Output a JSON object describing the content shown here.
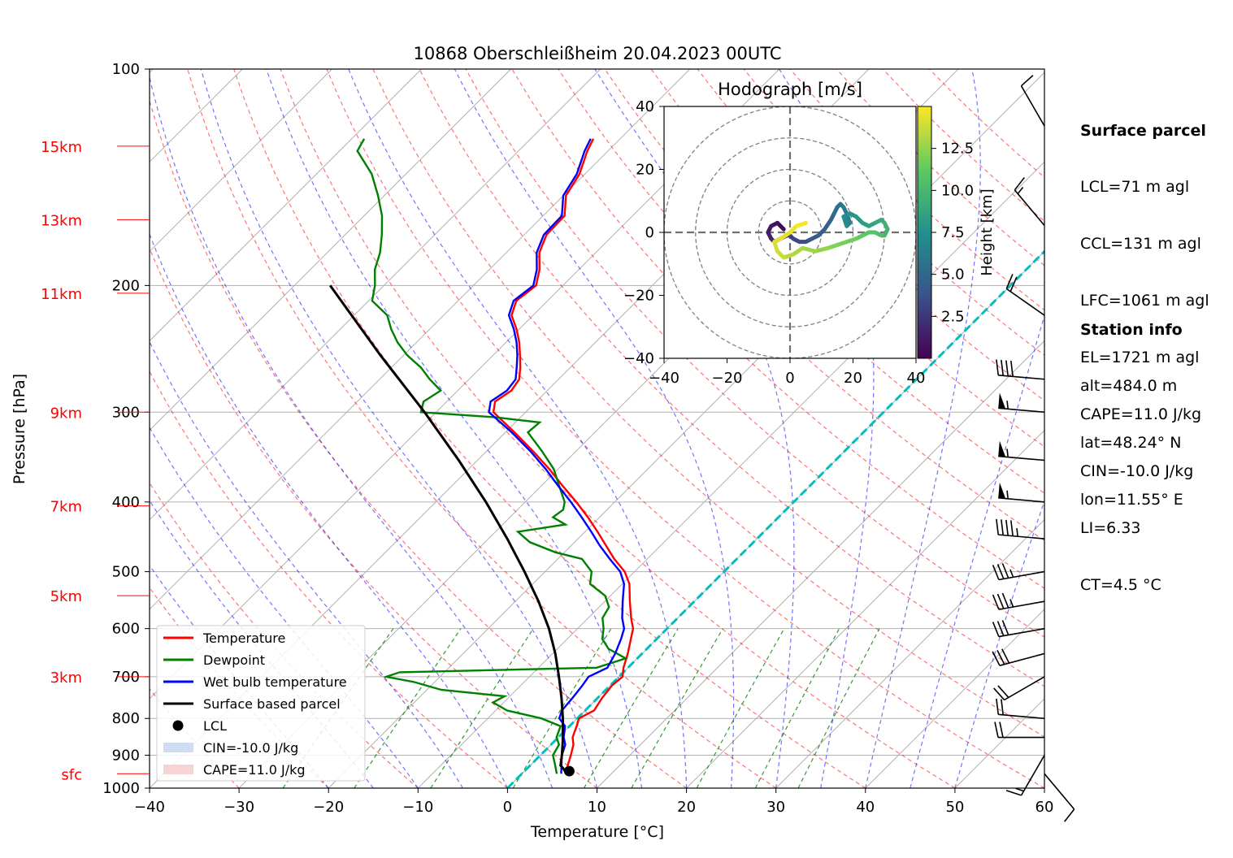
{
  "chart_data": {
    "type": "line",
    "title": "10868 Oberschleißheim 20.04.2023 00UTC",
    "xlabel": "Temperature [°C]",
    "ylabel": "Pressure [hPa]",
    "xlim": [
      -40,
      60
    ],
    "ylim": [
      1000,
      100
    ],
    "y_scale": "log",
    "skew_deg": 45,
    "x_ticks": [
      "−40",
      "−30",
      "−20",
      "−10",
      "0",
      "10",
      "20",
      "30",
      "40",
      "50",
      "60"
    ],
    "x_tick_values": [
      -40,
      -30,
      -20,
      -10,
      0,
      10,
      20,
      30,
      40,
      50,
      60
    ],
    "y_ticks": [
      "100",
      "200",
      "300",
      "400",
      "500",
      "600",
      "700",
      "800",
      "900",
      "1000"
    ],
    "y_tick_values": [
      100,
      200,
      300,
      400,
      500,
      600,
      700,
      800,
      900,
      1000
    ],
    "height_labels": [
      {
        "label": "15km",
        "p": 128
      },
      {
        "label": "13km",
        "p": 162
      },
      {
        "label": "11km",
        "p": 205
      },
      {
        "label": "9km",
        "p": 300
      },
      {
        "label": "7km",
        "p": 405
      },
      {
        "label": "5km",
        "p": 540
      },
      {
        "label": "3km",
        "p": 700
      },
      {
        "label": "sfc",
        "p": 955
      }
    ],
    "series": [
      {
        "name": "Temperature",
        "color": "#ff0000",
        "p": [
          955,
          930,
          900,
          870,
          850,
          820,
          800,
          780,
          750,
          720,
          700,
          680,
          650,
          620,
          600,
          580,
          550,
          520,
          500,
          480,
          460,
          440,
          420,
          400,
          380,
          360,
          340,
          320,
          300,
          290,
          280,
          270,
          260,
          250,
          240,
          230,
          220,
          210,
          200,
          190,
          180,
          170,
          160,
          150,
          140,
          130,
          125
        ],
        "t": [
          5.0,
          4.2,
          3.4,
          2.5,
          1.6,
          0.8,
          0.2,
          1.0,
          0.5,
          0.2,
          0.4,
          -0.5,
          -1.6,
          -2.9,
          -3.8,
          -5.2,
          -7.2,
          -9.2,
          -11.1,
          -13.7,
          -16.1,
          -18.6,
          -21.3,
          -24.3,
          -27.6,
          -31.0,
          -34.8,
          -39.0,
          -43.6,
          -44.6,
          -44.0,
          -44.4,
          -45.6,
          -47.0,
          -48.5,
          -50.3,
          -52.4,
          -53.5,
          -53.0,
          -54.4,
          -56.3,
          -57.5,
          -57.6,
          -59.7,
          -60.6,
          -62.3,
          -63.0
        ]
      },
      {
        "name": "Dewpoint",
        "color": "#008000",
        "p": [
          955,
          930,
          900,
          870,
          850,
          820,
          800,
          780,
          760,
          745,
          730,
          712,
          700,
          690,
          680,
          660,
          640,
          620,
          600,
          580,
          560,
          540,
          520,
          500,
          480,
          470,
          455,
          440,
          430,
          420,
          410,
          400,
          380,
          360,
          340,
          320,
          310,
          305,
          300,
          290,
          280,
          270,
          260,
          250,
          240,
          230,
          220,
          210,
          200,
          190,
          180,
          170,
          160,
          150,
          140,
          130,
          125
        ],
        "t": [
          3.9,
          2.8,
          1.4,
          0.9,
          -0.2,
          -1.0,
          -4.0,
          -8.7,
          -11.2,
          -10.6,
          -18.4,
          -22.3,
          -26.0,
          -25.0,
          -3.5,
          -1.3,
          -4.3,
          -6.1,
          -7.1,
          -8.4,
          -8.9,
          -10.6,
          -13.6,
          -14.8,
          -17.3,
          -21.0,
          -25.0,
          -27.5,
          -23.0,
          -25.2,
          -24.9,
          -25.6,
          -28.0,
          -30.5,
          -33.8,
          -37.5,
          -37.3,
          -42.8,
          -51.7,
          -52.6,
          -51.9,
          -54.4,
          -56.7,
          -59.6,
          -62.1,
          -64.3,
          -66.3,
          -69.6,
          -71.0,
          -72.8,
          -74.1,
          -75.9,
          -78.0,
          -80.7,
          -83.8,
          -88.0,
          -88.6
        ]
      },
      {
        "name": "Wet bulb temperature",
        "color": "#0000ff",
        "p": [
          955,
          930,
          900,
          870,
          850,
          820,
          800,
          780,
          750,
          720,
          700,
          680,
          650,
          620,
          600,
          580,
          550,
          520,
          500,
          480,
          460,
          440,
          420,
          400,
          380,
          360,
          340,
          320,
          300,
          290,
          280,
          270,
          260,
          250,
          240,
          230,
          220,
          210,
          200,
          190,
          180,
          170,
          160,
          150,
          140,
          130,
          125
        ],
        "t": [
          4.4,
          3.5,
          2.4,
          1.6,
          0.6,
          -0.5,
          -2.0,
          -2.6,
          -2.8,
          -3.1,
          -3.4,
          -2.3,
          -3.0,
          -4.0,
          -4.8,
          -6.2,
          -8.0,
          -9.8,
          -11.6,
          -14.2,
          -16.8,
          -19.3,
          -22.0,
          -24.9,
          -28.1,
          -31.4,
          -35.1,
          -39.3,
          -44.1,
          -45.1,
          -44.5,
          -44.8,
          -46.0,
          -47.3,
          -48.8,
          -50.6,
          -52.7,
          -53.8,
          -53.3,
          -54.7,
          -56.6,
          -57.8,
          -57.9,
          -60.0,
          -60.9,
          -62.6,
          -63.3
        ]
      },
      {
        "name": "Surface based parcel",
        "color": "#000000",
        "p": [
          955,
          940,
          930,
          900,
          870,
          850,
          800,
          750,
          700,
          650,
          600,
          550,
          500,
          450,
          400,
          350,
          300,
          250,
          200
        ],
        "t": [
          5.0,
          4.1,
          3.4,
          2.4,
          1.3,
          0.5,
          -1.6,
          -4.0,
          -6.7,
          -9.7,
          -13.2,
          -17.4,
          -22.3,
          -27.9,
          -34.4,
          -42.1,
          -51.3,
          -62.6,
          -76.0
        ]
      }
    ],
    "lcl": {
      "label": "LCL",
      "p": 947,
      "t": 5.0
    },
    "cin_label": "CIN=-10.0 J/kg",
    "cape_label": "CAPE=11.0 J/kg",
    "legend_position": "lower left",
    "wind_barbs": {
      "p": [
        120,
        165,
        220,
        270,
        300,
        350,
        400,
        450,
        500,
        550,
        600,
        650,
        700,
        800,
        850,
        900,
        955
      ],
      "speed_kt": [
        10,
        15,
        20,
        40,
        55,
        55,
        55,
        45,
        35,
        35,
        30,
        30,
        20,
        20,
        20,
        15,
        10
      ],
      "dir_deg": [
        330,
        320,
        305,
        275,
        275,
        275,
        275,
        275,
        260,
        260,
        260,
        255,
        240,
        275,
        270,
        210,
        140
      ]
    },
    "hodograph": {
      "title": "Hodograph [m/s]",
      "xlim": [
        -40,
        40
      ],
      "ylim": [
        -40,
        40
      ],
      "x_ticks": [
        "−40",
        "−20",
        "0",
        "20",
        "40"
      ],
      "x_tick_values": [
        -40,
        -20,
        0,
        20,
        40
      ],
      "y_ticks": [
        "40",
        "20",
        "0",
        "−20",
        "−40"
      ],
      "y_tick_values": [
        40,
        20,
        0,
        -20,
        -40
      ],
      "rings": [
        10,
        20,
        30,
        40
      ],
      "colorbar_label": "Height [km]",
      "colorbar_ticks": [
        "2.5",
        "5.0",
        "7.5",
        "10.0",
        "12.5"
      ],
      "colorbar_tick_values": [
        2.5,
        5.0,
        7.5,
        10.0,
        12.5
      ],
      "colorbar_range": [
        0,
        15
      ],
      "u": [
        -2,
        -4,
        -6,
        -7,
        -6,
        -5,
        -3,
        -1,
        0,
        1,
        3,
        5,
        7,
        9,
        11,
        13,
        14,
        15,
        16,
        17,
        18,
        19,
        18,
        17,
        19,
        21,
        23,
        25,
        27,
        29,
        30,
        31,
        30,
        29,
        27,
        25,
        23,
        21,
        18,
        15,
        12,
        8,
        4,
        1,
        -2,
        -4,
        -5,
        -3,
        0,
        2,
        5
      ],
      "v": [
        1,
        3,
        2,
        0,
        -2,
        -3,
        -2,
        -1,
        -1,
        -2,
        -3,
        -3,
        -2,
        -1,
        1,
        4,
        6,
        8,
        9,
        8,
        6,
        3,
        2,
        5,
        6,
        5,
        3,
        2,
        3,
        4,
        3,
        1,
        -1,
        -1,
        0,
        0,
        -1,
        -2,
        -3,
        -4,
        -5,
        -6,
        -5,
        -7,
        -8,
        -6,
        -3,
        -2,
        0,
        2,
        3
      ],
      "h_km": [
        0.2,
        0.5,
        0.8,
        1.1,
        1.4,
        1.7,
        2.0,
        2.3,
        2.6,
        2.9,
        3.2,
        3.5,
        3.8,
        4.1,
        4.4,
        4.7,
        5.0,
        5.3,
        5.6,
        5.9,
        6.2,
        6.5,
        6.8,
        7.1,
        7.4,
        7.7,
        8.0,
        8.3,
        8.6,
        8.9,
        9.2,
        9.5,
        9.8,
        10.1,
        10.4,
        10.7,
        11.0,
        11.3,
        11.6,
        11.9,
        12.2,
        12.5,
        12.8,
        13.1,
        13.4,
        13.7,
        14.0,
        14.2,
        14.4,
        14.6,
        14.8
      ]
    }
  },
  "legend": [
    {
      "label": "Temperature",
      "kind": "line",
      "color": "#ff0000"
    },
    {
      "label": "Dewpoint",
      "kind": "line",
      "color": "#008000"
    },
    {
      "label": "Wet bulb temperature",
      "kind": "line",
      "color": "#0000ff"
    },
    {
      "label": "Surface based parcel",
      "kind": "line",
      "color": "#000000"
    },
    {
      "label": "LCL",
      "kind": "marker",
      "color": "#000000"
    },
    {
      "label": "CIN=-10.0 J/kg",
      "kind": "patch",
      "color": "#aec7e8"
    },
    {
      "label": "CAPE=11.0 J/kg",
      "kind": "patch",
      "color": "#f4b6b6"
    }
  ],
  "colors": {
    "dry_adiabat": "#ff0000",
    "moist_adiabat": "#0000ff",
    "mixing_ratio": "#008000",
    "zero_isotherm": "#00bfbf",
    "height_label": "#ff0000",
    "grid": "#b0b0b0"
  },
  "surface_parcel": {
    "heading": "Surface parcel",
    "lines": [
      "LCL=71 m agl",
      "CCL=131 m agl",
      "LFC=1061 m agl",
      "EL=1721 m agl",
      "CAPE=11.0 J/kg",
      "CIN=-10.0 J/kg",
      "LI=6.33",
      "CT=4.5 °C"
    ]
  },
  "station_info": {
    "heading": "Station info",
    "lines": [
      "alt=484.0 m",
      "lat=48.24° N",
      "lon=11.55° E"
    ]
  }
}
